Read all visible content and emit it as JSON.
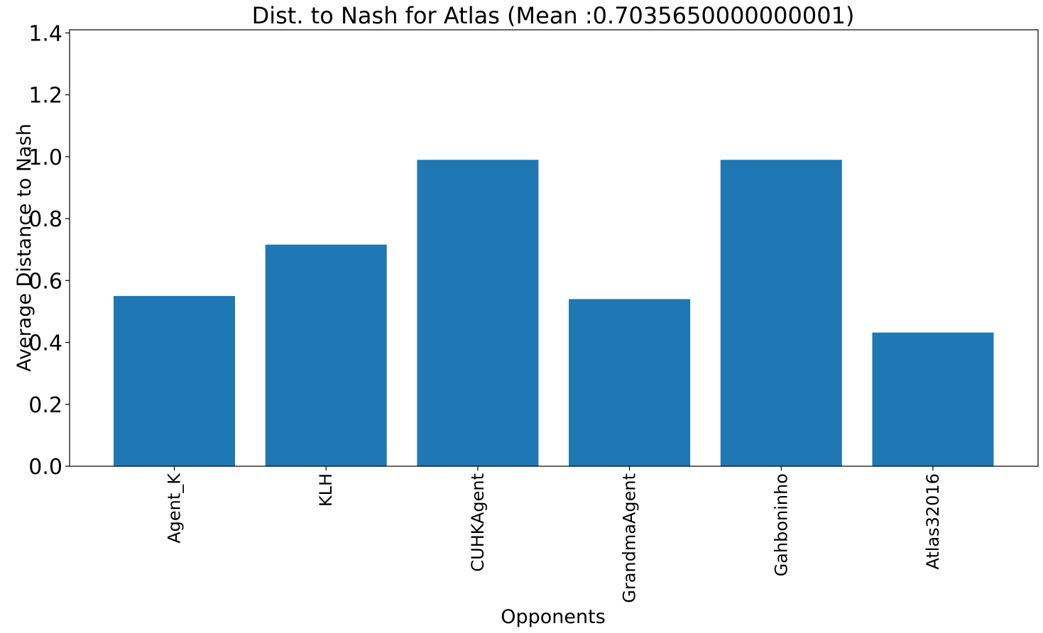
{
  "chart_data": {
    "type": "bar",
    "title": "Dist. to Nash for Atlas (Mean :0.7035650000000001)",
    "xlabel": "Opponents",
    "ylabel": "Average Distance to Nash",
    "categories": [
      "Agent_K",
      "KLH",
      "CUHKAgent",
      "GrandmaAgent",
      "Gahboninho",
      "Atlas32016"
    ],
    "values": [
      0.55,
      0.716,
      0.99,
      0.54,
      0.99,
      0.432
    ],
    "ylim": [
      0,
      1.41
    ],
    "yticks": [
      "0.0",
      "0.2",
      "0.4",
      "0.6",
      "0.8",
      "1.0",
      "1.2",
      "1.4"
    ],
    "bar_color": "#1f77b4",
    "grid": false,
    "x_tick_rotation": "vertical"
  }
}
